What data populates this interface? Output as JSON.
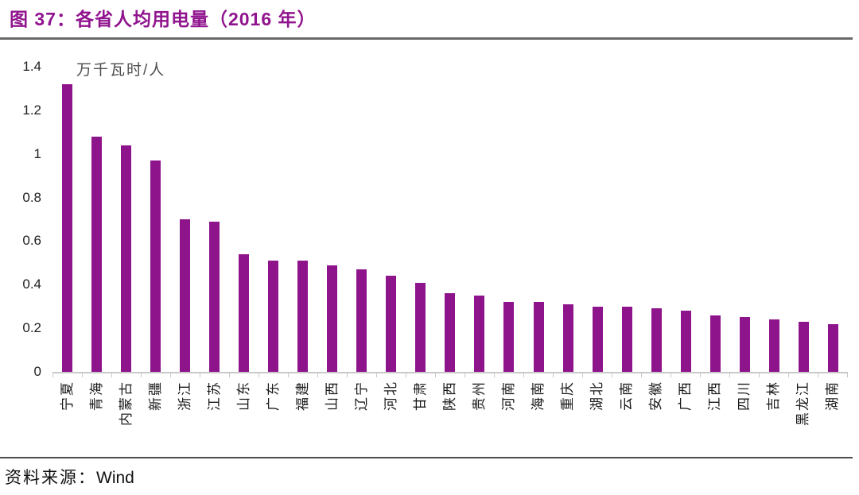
{
  "header": {
    "title": "图 37：各省人均用电量（2016 年）"
  },
  "chart_data": {
    "type": "bar",
    "title": "图 37：各省人均用电量（2016 年）",
    "unit_label": "万千瓦时/人",
    "categories": [
      "宁夏",
      "青海",
      "内蒙古",
      "新疆",
      "浙江",
      "江苏",
      "山东",
      "广东",
      "福建",
      "山西",
      "辽宁",
      "河北",
      "甘肃",
      "陕西",
      "贵州",
      "河南",
      "海南",
      "重庆",
      "湖北",
      "云南",
      "安徽",
      "广西",
      "江西",
      "四川",
      "吉林",
      "黑龙江",
      "湖南"
    ],
    "values": [
      1.32,
      1.08,
      1.04,
      0.97,
      0.7,
      0.69,
      0.54,
      0.51,
      0.51,
      0.49,
      0.47,
      0.44,
      0.41,
      0.36,
      0.35,
      0.32,
      0.32,
      0.31,
      0.3,
      0.3,
      0.29,
      0.28,
      0.26,
      0.25,
      0.24,
      0.23,
      0.22
    ],
    "ylim": [
      0,
      1.4
    ],
    "yticks": [
      1.4,
      1.2,
      1,
      0.8,
      0.6,
      0.4,
      0.2,
      0
    ],
    "ytick_labels": [
      "1.4",
      "1.2",
      "1",
      "0.8",
      "0.6",
      "0.4",
      "0.2",
      "0"
    ],
    "x_label_rotation": -90,
    "grid": false,
    "legend": false,
    "bar_color": "#8E148C"
  },
  "footer": {
    "source_label": "资料来源：",
    "source_value": "Wind"
  },
  "colors": {
    "accent": "#8E148C",
    "title_text": "#90148E",
    "axis_line": "#C9C9C9",
    "rule_top": "#6A6A6A",
    "rule_bottom": "#4D4D4D",
    "unit_text": "#4D4D4D",
    "tick_text": "#1F1F1F"
  }
}
